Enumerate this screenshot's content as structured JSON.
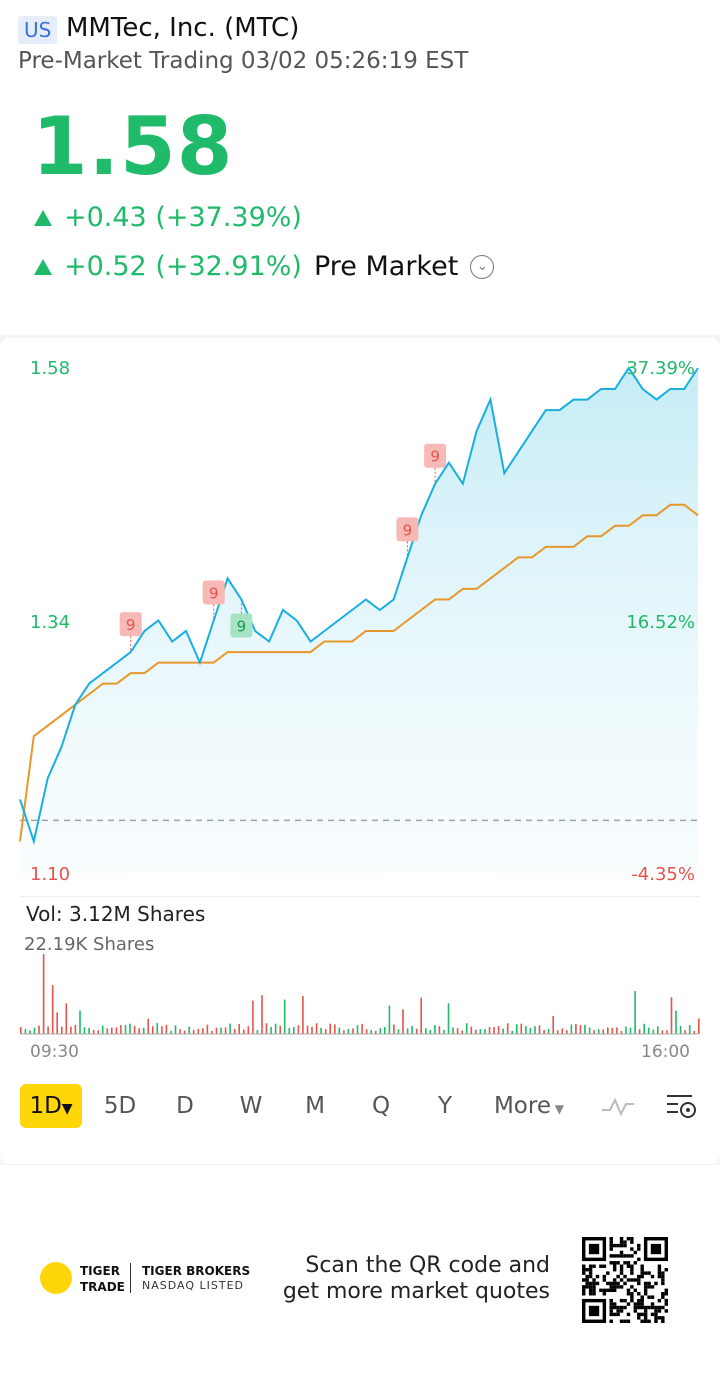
{
  "header": {
    "market": "US",
    "title": "MMTec, Inc. (MTC)",
    "subtitle": "Pre-Market Trading 03/02 05:26:19 EST"
  },
  "quote": {
    "price": "1.58",
    "change": "+0.43 (+37.39%)",
    "pre_change": "+0.52 (+32.91%)",
    "pre_label": "Pre Market",
    "up_color": "#1fba6a",
    "down_color": "#e5534b"
  },
  "chart": {
    "price_labels": [
      "1.58",
      "1.34",
      "1.10"
    ],
    "pct_labels": [
      "37.39%",
      "16.52%",
      "-4.35%"
    ],
    "marker_label": "9",
    "volume_label": "Vol:  3.12M Shares",
    "volume_scale": "22.19K Shares",
    "time_start": "09:30",
    "time_end": "16:00"
  },
  "chart_data": {
    "type": "line",
    "ylim": [
      1.1,
      1.58
    ],
    "x_range": [
      "09:30",
      "16:00"
    ],
    "prev_close": 1.15,
    "price_series": [
      1.17,
      1.13,
      1.19,
      1.22,
      1.26,
      1.28,
      1.29,
      1.3,
      1.31,
      1.33,
      1.34,
      1.32,
      1.33,
      1.3,
      1.34,
      1.38,
      1.36,
      1.33,
      1.32,
      1.35,
      1.34,
      1.32,
      1.33,
      1.34,
      1.35,
      1.36,
      1.35,
      1.36,
      1.4,
      1.44,
      1.47,
      1.49,
      1.47,
      1.52,
      1.55,
      1.48,
      1.5,
      1.52,
      1.54,
      1.54,
      1.55,
      1.55,
      1.56,
      1.56,
      1.58,
      1.56,
      1.55,
      1.56,
      1.56,
      1.58
    ],
    "vwap_series": [
      1.13,
      1.23,
      1.24,
      1.25,
      1.26,
      1.27,
      1.28,
      1.28,
      1.29,
      1.29,
      1.3,
      1.3,
      1.3,
      1.3,
      1.3,
      1.31,
      1.31,
      1.31,
      1.31,
      1.31,
      1.31,
      1.31,
      1.32,
      1.32,
      1.32,
      1.33,
      1.33,
      1.33,
      1.34,
      1.35,
      1.36,
      1.36,
      1.37,
      1.37,
      1.38,
      1.39,
      1.4,
      1.4,
      1.41,
      1.41,
      1.41,
      1.42,
      1.42,
      1.43,
      1.43,
      1.44,
      1.44,
      1.45,
      1.45,
      1.44
    ],
    "markers": [
      {
        "label": "9",
        "x_index": 8,
        "type": "sell"
      },
      {
        "label": "9",
        "x_index": 14,
        "type": "sell"
      },
      {
        "label": "9",
        "x_index": 16,
        "type": "buy"
      },
      {
        "label": "9",
        "x_index": 28,
        "type": "sell"
      },
      {
        "label": "9",
        "x_index": 30,
        "type": "sell"
      }
    ]
  },
  "tabs": [
    {
      "label": "1D",
      "active": true
    },
    {
      "label": "5D"
    },
    {
      "label": "D"
    },
    {
      "label": "W"
    },
    {
      "label": "M"
    },
    {
      "label": "Q"
    },
    {
      "label": "Y"
    },
    {
      "label": "More"
    }
  ],
  "icons": {
    "indicator": "wave-icon",
    "settings": "chart-settings-icon",
    "toggle": "chevron-down-icon"
  },
  "footer": {
    "logo_line1": "TIGER",
    "logo_line2": "TRADE",
    "brand": "TIGER BROKERS",
    "brand_sub": "NASDAQ LISTED",
    "scan_line1": "Scan the QR code and",
    "scan_line2": "get more market quotes"
  }
}
